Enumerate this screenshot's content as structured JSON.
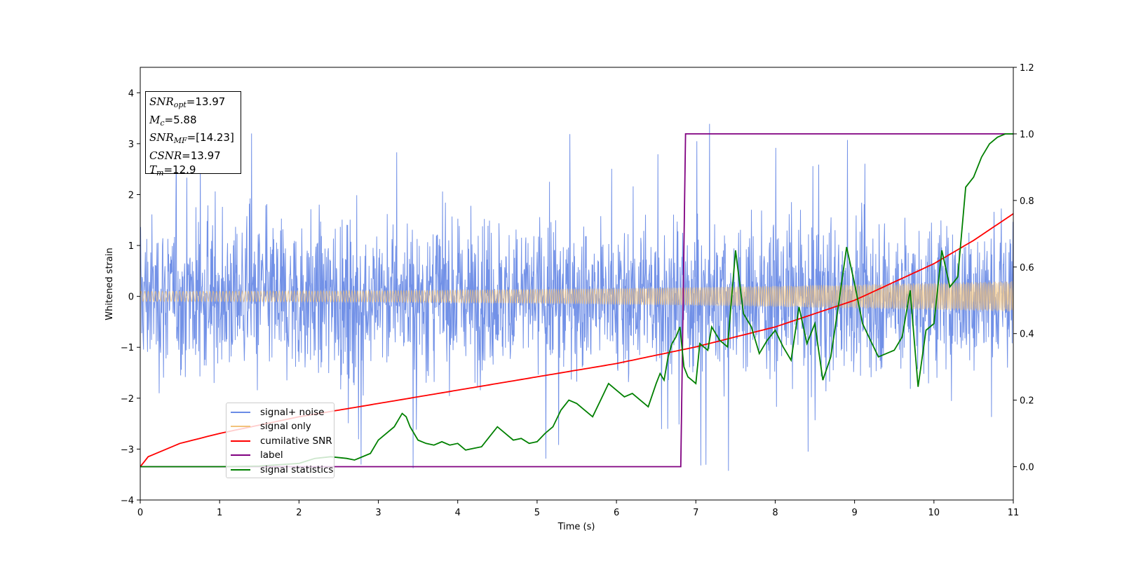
{
  "chart_data": {
    "type": "line",
    "xlabel": "Time (s)",
    "ylabel": "Whitened strain",
    "xlim": [
      0,
      11
    ],
    "ylim": [
      -4.0,
      4.5
    ],
    "y2lim": [
      -0.1,
      1.2
    ],
    "x_ticks": [
      "0",
      "1",
      "2",
      "3",
      "4",
      "5",
      "6",
      "7",
      "8",
      "9",
      "10",
      "11"
    ],
    "y_ticks": [
      "4",
      "3",
      "2",
      "1",
      "0",
      "−1",
      "−2",
      "−3",
      "−4"
    ],
    "y_tick_values": [
      4,
      3,
      2,
      1,
      0,
      -1,
      -2,
      -3,
      -4
    ],
    "y2_ticks": [
      "1.2",
      "1.0",
      "0.8",
      "0.6",
      "0.4",
      "0.2",
      "0.0"
    ],
    "y2_tick_values": [
      1.2,
      1.0,
      0.8,
      0.6,
      0.4,
      0.2,
      0.0
    ],
    "annotation": {
      "snr_opt_label": "SNR",
      "snr_opt_sub": "opt",
      "snr_opt_value": "=13.97",
      "mc_label": "M",
      "mc_sub": "c",
      "mc_value": "=5.88",
      "snr_mf_label": "SNR",
      "snr_mf_sub": "MF",
      "snr_mf_value": "=[14.23]",
      "csnr_label": "CSNR",
      "csnr_value": "=13.97",
      "tm_label": "T",
      "tm_sub": "m",
      "tm_value": "=12.9"
    },
    "series": [
      {
        "name": "signal+ noise",
        "color": "#6a8be6",
        "axis": "left",
        "kind": "noise",
        "envelope_sigma": 0.75,
        "peak_max": 3.62,
        "peak_min": -3.65
      },
      {
        "name": "signal only",
        "color": "#f2c27a",
        "axis": "left",
        "kind": "chirp",
        "amplitude_start": 0.1,
        "amplitude_end": 0.3
      },
      {
        "name": "cumilative SNR",
        "color": "#ff0000",
        "axis": "right",
        "x": [
          0,
          0.1,
          0.5,
          1,
          2,
          3,
          4,
          5,
          6,
          7,
          8,
          9,
          10,
          10.5,
          11
        ],
        "y": [
          0.0,
          0.03,
          0.07,
          0.1,
          0.15,
          0.19,
          0.23,
          0.27,
          0.31,
          0.36,
          0.42,
          0.5,
          0.61,
          0.68,
          0.76
        ]
      },
      {
        "name": "label",
        "color": "#800080",
        "axis": "right",
        "x": [
          0,
          6.81,
          6.87,
          11
        ],
        "y": [
          0,
          0,
          1,
          1
        ]
      },
      {
        "name": "signal statistics",
        "color": "#008000",
        "axis": "right",
        "x": [
          0,
          0.5,
          1,
          1.5,
          2,
          2.2,
          2.4,
          2.6,
          2.7,
          2.9,
          3.0,
          3.1,
          3.2,
          3.3,
          3.35,
          3.4,
          3.5,
          3.6,
          3.7,
          3.8,
          3.9,
          4.0,
          4.1,
          4.2,
          4.3,
          4.4,
          4.5,
          4.6,
          4.7,
          4.8,
          4.9,
          5.0,
          5.1,
          5.2,
          5.3,
          5.4,
          5.5,
          5.6,
          5.7,
          5.8,
          5.9,
          6.0,
          6.1,
          6.2,
          6.3,
          6.4,
          6.5,
          6.55,
          6.6,
          6.65,
          6.7,
          6.75,
          6.8,
          6.85,
          6.9,
          6.95,
          7.0,
          7.05,
          7.1,
          7.15,
          7.2,
          7.3,
          7.4,
          7.5,
          7.6,
          7.7,
          7.8,
          7.9,
          8.0,
          8.1,
          8.2,
          8.3,
          8.4,
          8.5,
          8.6,
          8.7,
          8.8,
          8.9,
          9.0,
          9.1,
          9.2,
          9.3,
          9.4,
          9.5,
          9.6,
          9.7,
          9.8,
          9.9,
          10.0,
          10.1,
          10.2,
          10.3,
          10.4,
          10.5,
          10.6,
          10.7,
          10.8,
          10.9,
          11.0
        ],
        "y": [
          0.0,
          0.0,
          0.0,
          0.002,
          0.01,
          0.025,
          0.03,
          0.025,
          0.02,
          0.04,
          0.08,
          0.1,
          0.12,
          0.16,
          0.15,
          0.12,
          0.08,
          0.07,
          0.065,
          0.075,
          0.065,
          0.07,
          0.05,
          0.055,
          0.06,
          0.09,
          0.12,
          0.1,
          0.08,
          0.085,
          0.07,
          0.075,
          0.1,
          0.12,
          0.17,
          0.2,
          0.19,
          0.17,
          0.15,
          0.2,
          0.25,
          0.23,
          0.21,
          0.22,
          0.2,
          0.18,
          0.25,
          0.28,
          0.26,
          0.33,
          0.37,
          0.39,
          0.42,
          0.3,
          0.27,
          0.26,
          0.25,
          0.37,
          0.36,
          0.35,
          0.42,
          0.38,
          0.36,
          0.65,
          0.46,
          0.42,
          0.34,
          0.38,
          0.41,
          0.36,
          0.32,
          0.48,
          0.37,
          0.43,
          0.26,
          0.33,
          0.49,
          0.66,
          0.55,
          0.43,
          0.38,
          0.33,
          0.34,
          0.35,
          0.39,
          0.53,
          0.24,
          0.41,
          0.43,
          0.65,
          0.54,
          0.57,
          0.84,
          0.87,
          0.93,
          0.97,
          0.99,
          1.0,
          1.0
        ]
      }
    ]
  }
}
